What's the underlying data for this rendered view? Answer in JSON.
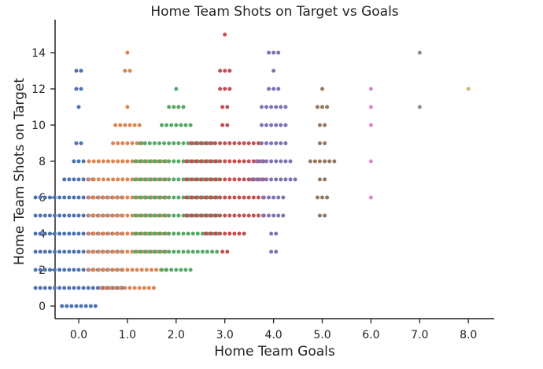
{
  "chart_data": {
    "type": "scatter",
    "subtype": "swarm",
    "title": "Home Team Shots on Target vs Goals",
    "xlabel": "Home Team Goals",
    "ylabel": "Home Team Shots on Target",
    "ylim": [
      -0.9,
      16
    ],
    "grid": false,
    "legend": "none",
    "categories": [
      "0.0",
      "1.0",
      "2.0",
      "3.0",
      "4.0",
      "5.0",
      "6.0",
      "7.0",
      "8.0"
    ],
    "y_ticks": [
      "0",
      "2",
      "4",
      "6",
      "8",
      "10",
      "12",
      "14"
    ],
    "colors": [
      "#4c72b0",
      "#dd8452",
      "#55a868",
      "#c44e52",
      "#8172b3",
      "#937860",
      "#da8bc3",
      "#8c8c8c",
      "#ccb974"
    ],
    "series": [
      {
        "category": "0.0",
        "counts": {
          "0": 8,
          "1": 19,
          "2": 19,
          "3": 19,
          "4": 19,
          "5": 19,
          "6": 19,
          "7": 7,
          "8": 3,
          "9": 2,
          "11": 1,
          "12": 2,
          "13": 2
        }
      },
      {
        "category": "1.0",
        "counts": {
          "1": 12,
          "2": 17,
          "3": 17,
          "4": 17,
          "5": 17,
          "6": 17,
          "7": 17,
          "8": 17,
          "9": 7,
          "10": 6,
          "11": 1,
          "13": 2,
          "14": 1
        }
      },
      {
        "category": "2.0",
        "counts": {
          "2": 7,
          "3": 18,
          "4": 18,
          "5": 18,
          "6": 18,
          "7": 18,
          "8": 18,
          "9": 16,
          "10": 7,
          "11": 4,
          "12": 1
        }
      },
      {
        "category": "3.0",
        "counts": {
          "3": 2,
          "4": 9,
          "5": 17,
          "6": 17,
          "7": 17,
          "8": 17,
          "9": 15,
          "10": 2,
          "11": 2,
          "12": 3,
          "13": 3,
          "15": 1
        }
      },
      {
        "category": "4.0",
        "counts": {
          "3": 2,
          "4": 2,
          "5": 5,
          "6": 5,
          "7": 10,
          "8": 8,
          "9": 6,
          "10": 6,
          "11": 6,
          "12": 3,
          "13": 1,
          "14": 3
        }
      },
      {
        "category": "5.0",
        "counts": {
          "5": 2,
          "6": 3,
          "7": 2,
          "8": 6,
          "9": 2,
          "10": 2,
          "11": 3,
          "12": 1
        }
      },
      {
        "category": "6.0",
        "counts": {
          "6": 1,
          "8": 1,
          "10": 1,
          "11": 1,
          "12": 1
        }
      },
      {
        "category": "7.0",
        "counts": {
          "11": 1,
          "14": 1
        }
      },
      {
        "category": "8.0",
        "counts": {
          "12": 1
        }
      }
    ]
  }
}
